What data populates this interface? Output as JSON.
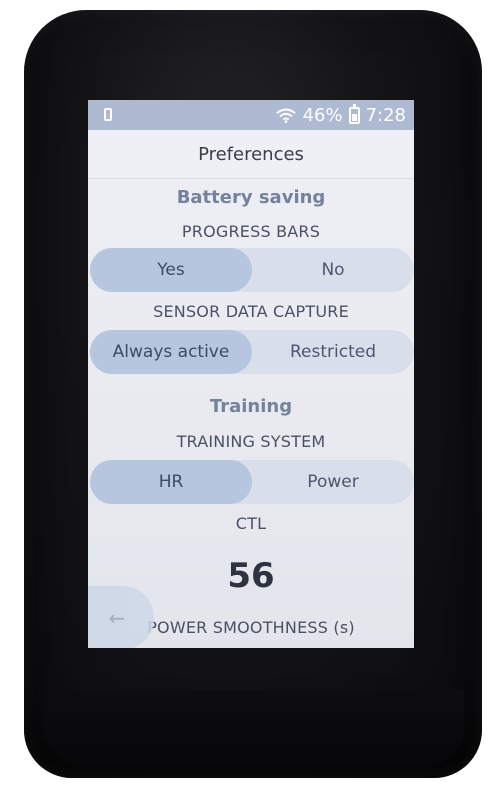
{
  "status_bar": {
    "battery_percent": "46%",
    "time": "7:28",
    "icons": [
      "sim-icon",
      "wifi-icon",
      "battery-icon"
    ]
  },
  "header": {
    "title": "Preferences"
  },
  "sections": {
    "battery_saving": {
      "heading": "Battery saving",
      "progress_bars": {
        "label": "PROGRESS BARS",
        "options": [
          "Yes",
          "No"
        ],
        "selected": "Yes"
      },
      "sensor_data_capture": {
        "label": "SENSOR DATA CAPTURE",
        "options": [
          "Always active",
          "Restricted"
        ],
        "selected": "Always active"
      }
    },
    "training": {
      "heading": "Training",
      "training_system": {
        "label": "TRAINING SYSTEM",
        "options": [
          "HR",
          "Power"
        ],
        "selected": "HR"
      },
      "ctl": {
        "label": "CTL",
        "value": "56"
      },
      "power_smoothness": {
        "label": "POWER SMOOTHNESS (s)"
      }
    }
  },
  "navigation": {
    "back_icon": "arrow-left-icon",
    "back_glyph": "←"
  },
  "colors": {
    "status_bar": "#aeb9d2",
    "screen_bg": "#eef0f5",
    "segment_bg": "#d9dfea",
    "segment_selected": "#b7c6df",
    "section_heading": "#76829b",
    "device_body": "#141418"
  }
}
